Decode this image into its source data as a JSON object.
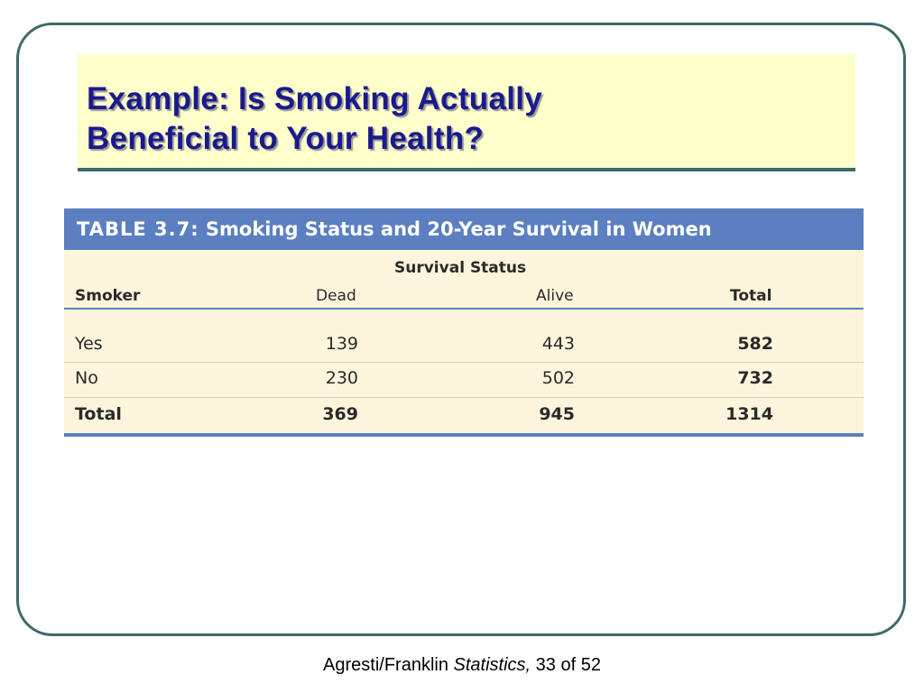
{
  "slide": {
    "title_line1": "Example:  Is Smoking Actually",
    "title_line2": "Beneficial to Your Health?"
  },
  "table": {
    "caption_label": "TABLE 3.7:",
    "caption_text": "Smoking Status and 20-Year Survival in Women",
    "group_header": "Survival Status",
    "columns": [
      "Smoker",
      "Dead",
      "Alive",
      "Total"
    ],
    "rows": [
      {
        "smoker": "Yes",
        "dead": "139",
        "alive": "443",
        "total": "582"
      },
      {
        "smoker": "No",
        "dead": "230",
        "alive": "502",
        "total": "732"
      },
      {
        "smoker": "Total",
        "dead": "369",
        "alive": "945",
        "total": "1314"
      }
    ]
  },
  "footer": {
    "authors": "Agresti/Franklin",
    "book": "Statistics,",
    "page": "33 of 52"
  },
  "colors": {
    "title_text": "#1a1a8c",
    "title_bg": "#ffffcc",
    "table_header": "#5b7fc0",
    "table_bg": "#fdf5dc",
    "frame": "#3e6a6a"
  }
}
